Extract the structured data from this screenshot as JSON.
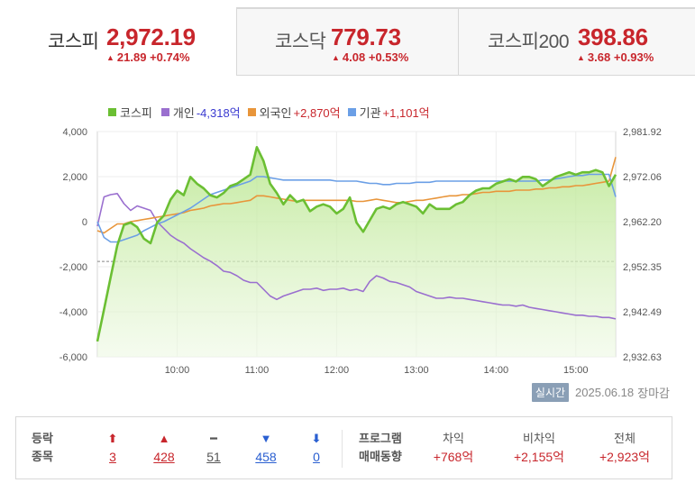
{
  "tabs": [
    {
      "name": "코스피",
      "value": "2,972.19",
      "change": "21.89",
      "pct": "+0.74%",
      "arrow": "▲"
    },
    {
      "name": "코스닥",
      "value": "779.73",
      "change": "4.08",
      "pct": "+0.53%",
      "arrow": "▲"
    },
    {
      "name": "코스피200",
      "value": "398.86",
      "change": "3.68",
      "pct": "+0.93%",
      "arrow": "▲"
    }
  ],
  "legend": [
    {
      "name": "코스피",
      "value": "",
      "color": "#6bbf33"
    },
    {
      "name": "개인",
      "value": "-4,318억",
      "color": "#9a6fcf"
    },
    {
      "name": "외국인",
      "value": "+2,870억",
      "color": "#e8953a"
    },
    {
      "name": "기관",
      "value": "+1,101억",
      "color": "#6b9fe6"
    }
  ],
  "status": {
    "badge": "실시간",
    "date": "2025.06.18",
    "session": "장마감"
  },
  "breadth": {
    "label_line1": "등락",
    "label_line2": "종목",
    "items": [
      {
        "icon": "⬆",
        "count": "3",
        "kind": "up"
      },
      {
        "icon": "▲",
        "count": "428",
        "kind": "up"
      },
      {
        "icon": "━",
        "count": "51",
        "kind": "fl"
      },
      {
        "icon": "▼",
        "count": "458",
        "kind": "dn"
      },
      {
        "icon": "⬇",
        "count": "0",
        "kind": "dn"
      }
    ]
  },
  "program": {
    "label_line1": "프로그램",
    "label_line2": "매매동향",
    "items": [
      {
        "label": "차익",
        "value": "+768억"
      },
      {
        "label": "비차익",
        "value": "+2,155억"
      },
      {
        "label": "전체",
        "value": "+2,923억"
      }
    ]
  },
  "chart_data": {
    "type": "line",
    "x_ticks": [
      "10:00",
      "11:00",
      "12:00",
      "13:00",
      "14:00",
      "15:00"
    ],
    "y_left_ticks": [
      "4,000",
      "2,000",
      "0",
      "-2,000",
      "-4,000",
      "-6,000"
    ],
    "y_right_ticks": [
      "2,981.92",
      "2,972.06",
      "2,962.20",
      "2,952.35",
      "2,942.49",
      "2,932.63"
    ],
    "y_left_range": [
      -6000,
      4000
    ],
    "y_right_range": [
      2932.63,
      2981.92
    ],
    "x_range": [
      "09:00",
      "15:30"
    ],
    "reference_line": 2953.5,
    "x_minutes": [
      0,
      5,
      10,
      15,
      20,
      25,
      30,
      35,
      40,
      45,
      50,
      55,
      60,
      65,
      70,
      75,
      80,
      85,
      90,
      95,
      100,
      105,
      110,
      115,
      120,
      125,
      130,
      135,
      140,
      145,
      150,
      155,
      160,
      165,
      170,
      175,
      180,
      185,
      190,
      195,
      200,
      205,
      210,
      215,
      220,
      225,
      230,
      235,
      240,
      245,
      250,
      255,
      260,
      265,
      270,
      275,
      280,
      285,
      290,
      295,
      300,
      305,
      310,
      315,
      320,
      325,
      330,
      335,
      340,
      345,
      350,
      355,
      360,
      365,
      370,
      375,
      380,
      385,
      390
    ],
    "series": [
      {
        "name": "코스피",
        "axis": "right",
        "color": "#6bbf33",
        "values": [
          2936.0,
          2943.0,
          2950.0,
          2957.0,
          2961.5,
          2962.0,
          2961.0,
          2958.5,
          2957.5,
          2962.0,
          2963.5,
          2967.0,
          2969.0,
          2968.0,
          2972.0,
          2970.5,
          2969.5,
          2968.0,
          2967.5,
          2968.5,
          2970.0,
          2970.5,
          2971.5,
          2972.5,
          2978.5,
          2975.5,
          2970.5,
          2968.5,
          2966.0,
          2968.0,
          2966.5,
          2967.0,
          2964.5,
          2965.5,
          2966.0,
          2965.5,
          2964.0,
          2965.0,
          2967.5,
          2962.0,
          2960.0,
          2962.5,
          2965.0,
          2965.5,
          2965.0,
          2966.0,
          2966.5,
          2966.0,
          2965.5,
          2964.0,
          2966.0,
          2965.0,
          2965.0,
          2965.0,
          2966.0,
          2966.5,
          2968.0,
          2969.0,
          2969.5,
          2969.5,
          2970.5,
          2971.0,
          2971.5,
          2971.0,
          2972.0,
          2972.0,
          2971.5,
          2970.0,
          2971.0,
          2972.0,
          2972.5,
          2973.0,
          2972.5,
          2973.0,
          2973.0,
          2973.5,
          2973.0,
          2970.0,
          2972.5
        ]
      },
      {
        "name": "개인",
        "axis": "left",
        "color": "#9a6fcf",
        "values": [
          -200,
          1100,
          1200,
          1250,
          800,
          500,
          700,
          600,
          500,
          0,
          -300,
          -600,
          -800,
          -950,
          -1200,
          -1400,
          -1600,
          -1750,
          -1950,
          -2200,
          -2250,
          -2400,
          -2600,
          -2700,
          -2700,
          -3000,
          -3300,
          -3450,
          -3300,
          -3200,
          -3100,
          -3000,
          -3000,
          -2950,
          -3050,
          -3000,
          -3000,
          -2950,
          -3050,
          -3000,
          -3100,
          -2650,
          -2400,
          -2500,
          -2650,
          -2700,
          -2800,
          -2900,
          -3100,
          -3200,
          -3300,
          -3400,
          -3400,
          -3350,
          -3400,
          -3400,
          -3450,
          -3500,
          -3550,
          -3600,
          -3650,
          -3700,
          -3700,
          -3750,
          -3700,
          -3800,
          -3850,
          -3900,
          -3950,
          -4000,
          -4050,
          -4100,
          -4150,
          -4150,
          -4200,
          -4200,
          -4250,
          -4250,
          -4318
        ]
      },
      {
        "name": "외국인",
        "axis": "left",
        "color": "#e8953a",
        "values": [
          -400,
          -500,
          -300,
          -100,
          -100,
          0,
          50,
          100,
          150,
          200,
          250,
          300,
          350,
          400,
          500,
          550,
          600,
          700,
          750,
          800,
          800,
          850,
          900,
          950,
          1150,
          1150,
          1100,
          1050,
          1000,
          950,
          900,
          950,
          950,
          950,
          950,
          950,
          950,
          950,
          950,
          900,
          900,
          950,
          1000,
          950,
          900,
          850,
          850,
          900,
          950,
          950,
          1000,
          1050,
          1100,
          1150,
          1150,
          1200,
          1200,
          1250,
          1300,
          1300,
          1350,
          1350,
          1350,
          1400,
          1400,
          1400,
          1450,
          1450,
          1500,
          1500,
          1550,
          1550,
          1600,
          1600,
          1650,
          1700,
          1750,
          1800,
          2870
        ]
      },
      {
        "name": "기관",
        "axis": "left",
        "color": "#6b9fe6",
        "values": [
          0,
          -700,
          -900,
          -900,
          -800,
          -700,
          -600,
          -400,
          -250,
          -100,
          0,
          150,
          300,
          450,
          600,
          800,
          1000,
          1200,
          1300,
          1400,
          1500,
          1600,
          1700,
          1800,
          2000,
          2000,
          1950,
          1900,
          1850,
          1850,
          1850,
          1850,
          1850,
          1850,
          1850,
          1850,
          1800,
          1800,
          1800,
          1800,
          1750,
          1700,
          1700,
          1650,
          1650,
          1700,
          1700,
          1700,
          1750,
          1750,
          1750,
          1800,
          1800,
          1800,
          1800,
          1800,
          1800,
          1800,
          1800,
          1800,
          1800,
          1800,
          1800,
          1800,
          1800,
          1800,
          1800,
          1850,
          1850,
          1900,
          1950,
          2000,
          2050,
          2050,
          2100,
          2100,
          2100,
          2100,
          1101
        ]
      }
    ]
  }
}
